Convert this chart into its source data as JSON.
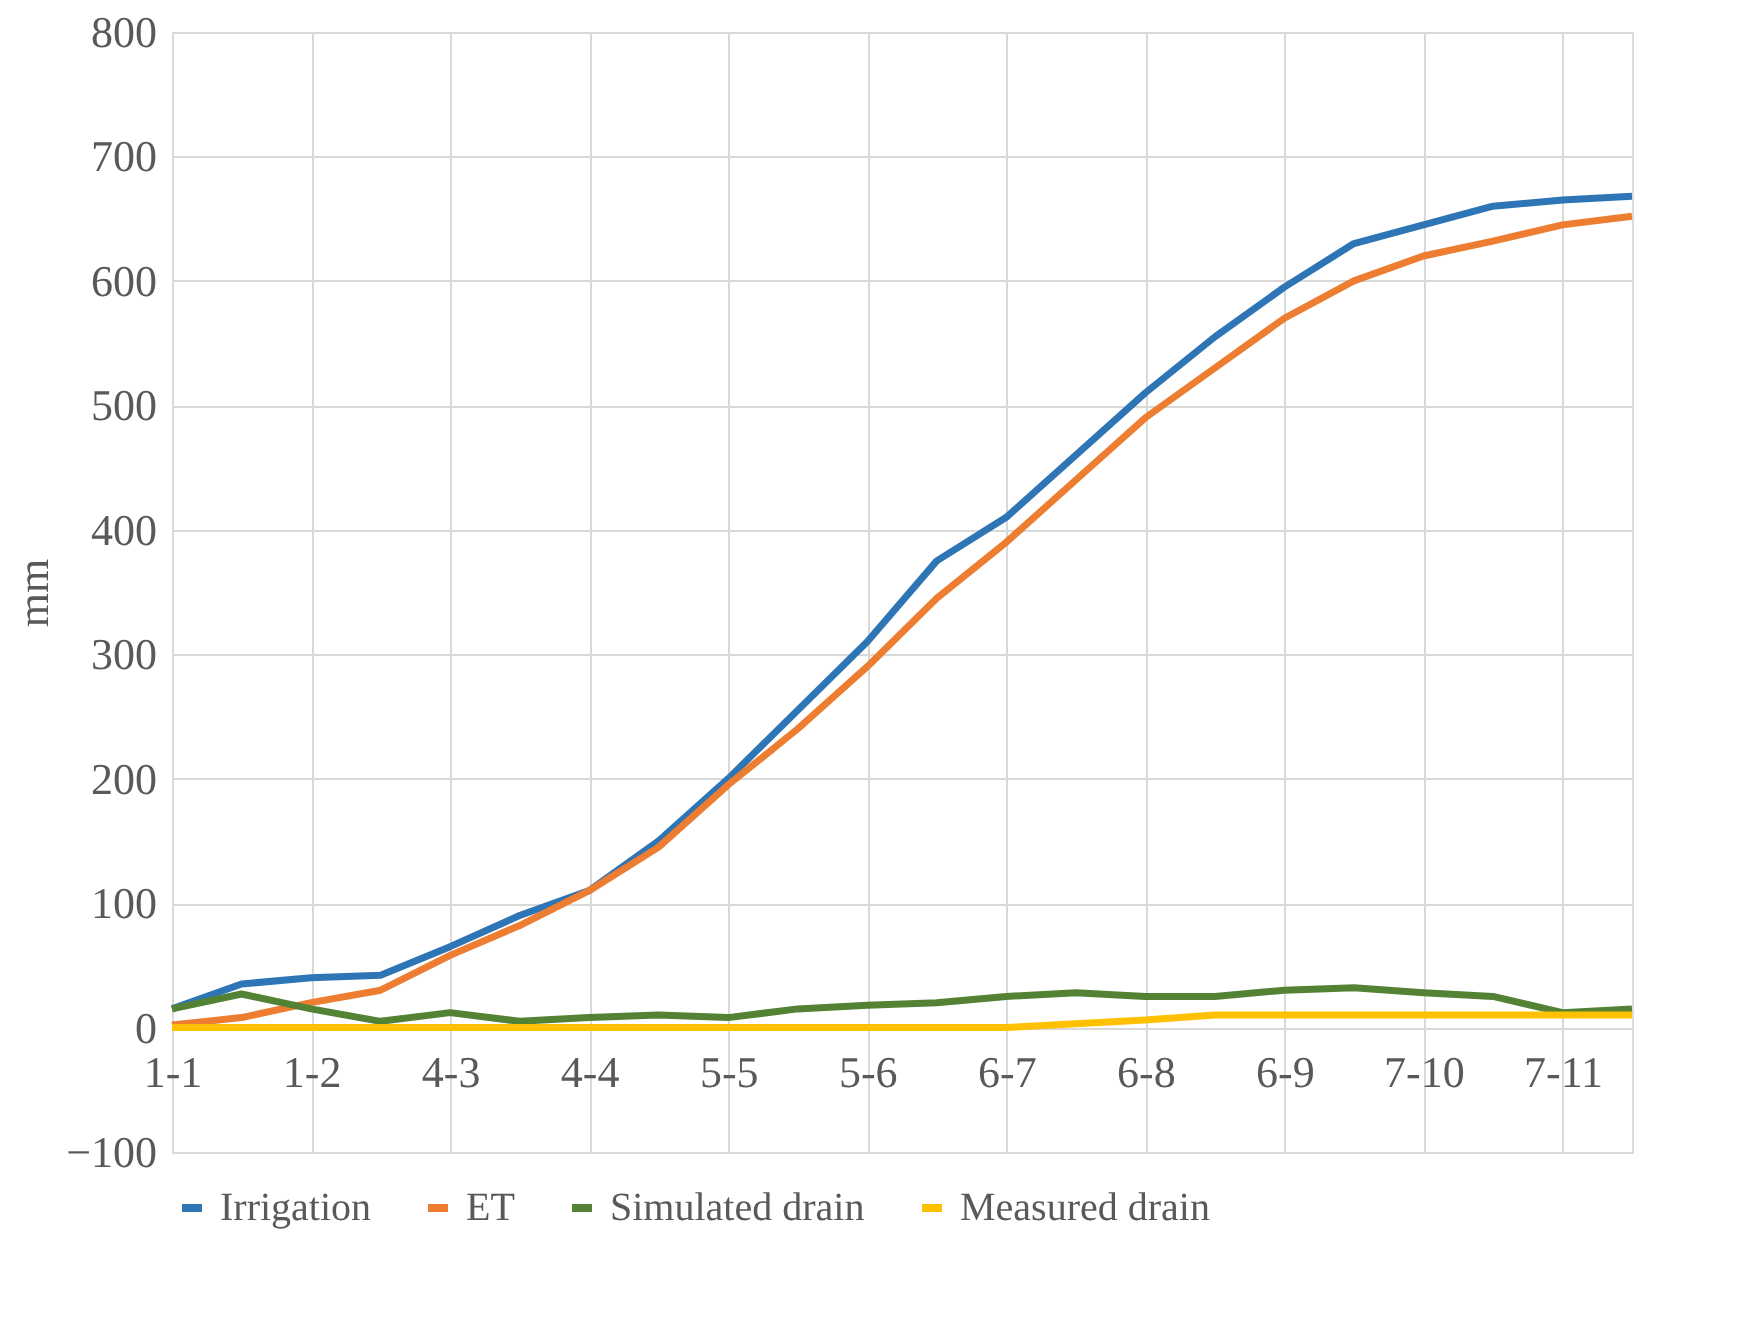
{
  "chart_data": {
    "type": "line",
    "ylabel": "mm",
    "categories": [
      "1-1",
      null,
      "1-2",
      null,
      "4-3",
      null,
      "4-4",
      null,
      "5-5",
      null,
      "5-6",
      null,
      "6-7",
      null,
      "6-8",
      null,
      "6-9",
      null,
      "7-10",
      null,
      "7-11",
      null
    ],
    "ylim": [
      -100,
      800
    ],
    "yticks": [
      -100,
      0,
      100,
      200,
      300,
      400,
      500,
      600,
      700,
      800
    ],
    "grid": true,
    "legend": "bottom",
    "line_style": "solid",
    "series": [
      {
        "name": "Irrigation",
        "color": "#2e75b6",
        "values": [
          15,
          35,
          40,
          42,
          65,
          90,
          110,
          150,
          200,
          255,
          310,
          375,
          410,
          460,
          510,
          555,
          595,
          630,
          645,
          660,
          665,
          668
        ]
      },
      {
        "name": "ET",
        "color": "#ed7d31",
        "values": [
          2,
          8,
          20,
          30,
          58,
          82,
          110,
          145,
          195,
          240,
          290,
          345,
          390,
          440,
          490,
          530,
          570,
          600,
          620,
          632,
          645,
          652
        ]
      },
      {
        "name": "Simulated drain",
        "color": "#548235",
        "values": [
          15,
          27,
          15,
          5,
          12,
          5,
          8,
          10,
          8,
          15,
          18,
          20,
          25,
          28,
          25,
          25,
          30,
          32,
          28,
          25,
          12,
          15
        ]
      },
      {
        "name": "Measured drain",
        "color": "#ffc000",
        "values": [
          0,
          0,
          0,
          0,
          0,
          0,
          0,
          0,
          0,
          0,
          0,
          0,
          0,
          3,
          6,
          10,
          10,
          10,
          10,
          10,
          10,
          10
        ]
      }
    ]
  }
}
